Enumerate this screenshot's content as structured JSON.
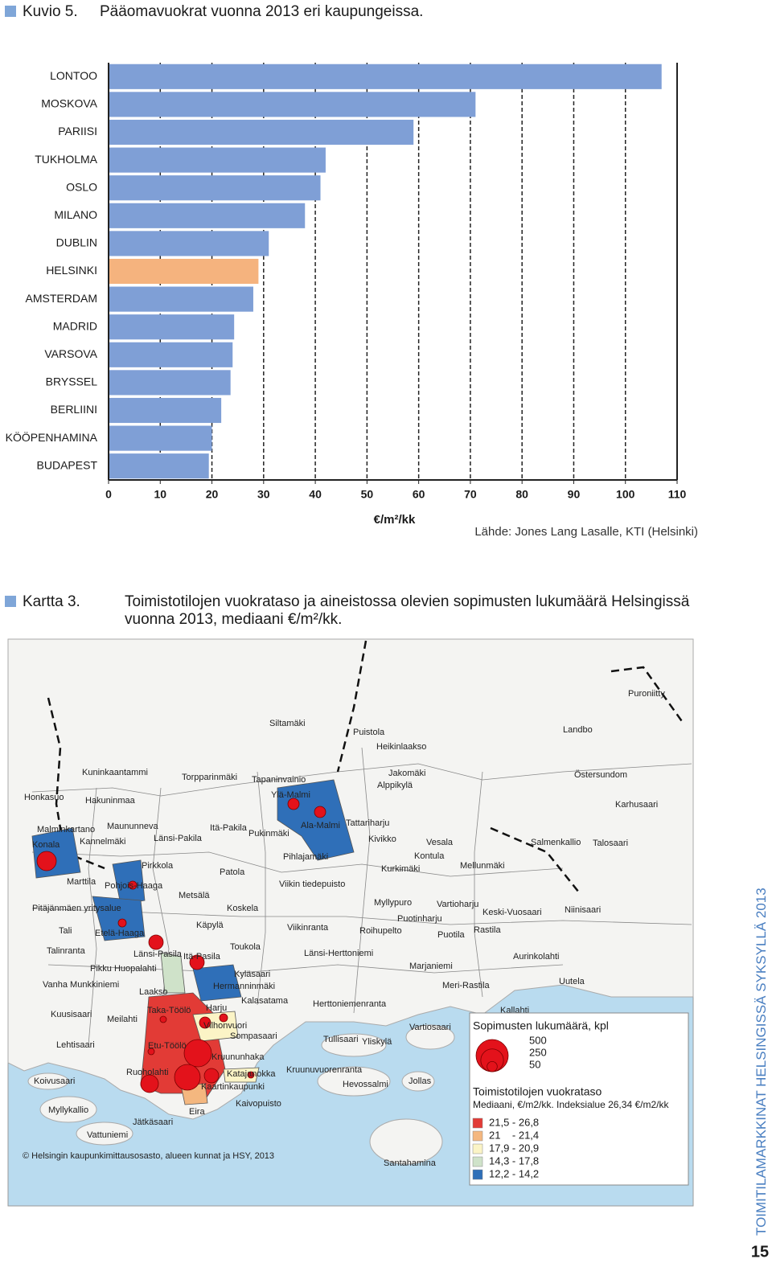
{
  "figure": {
    "label": "Kuvio 5.",
    "title": "Pääomavuokrat vuonna 2013 eri kaupungeissa.",
    "source": "Lähde: Jones Lang Lasalle, KTI (Helsinki)"
  },
  "chart_data": {
    "type": "hbar",
    "categories": [
      "LONTOO",
      "MOSKOVA",
      "PARIISI",
      "TUKHOLMA",
      "OSLO",
      "MILANO",
      "DUBLIN",
      "HELSINKI",
      "AMSTERDAM",
      "MADRID",
      "VARSOVA",
      "BRYSSEL",
      "BERLIINI",
      "KÖÖPENHAMINA",
      "BUDAPEST"
    ],
    "values": [
      107,
      71,
      59,
      42,
      41,
      38,
      31,
      29,
      28,
      24.3,
      24,
      23.6,
      21.8,
      20,
      19.4
    ],
    "colors": [
      "#7f9fd6",
      "#7f9fd6",
      "#7f9fd6",
      "#7f9fd6",
      "#7f9fd6",
      "#7f9fd6",
      "#7f9fd6",
      "#f5b37e",
      "#7f9fd6",
      "#7f9fd6",
      "#7f9fd6",
      "#7f9fd6",
      "#7f9fd6",
      "#7f9fd6",
      "#7f9fd6"
    ],
    "xlim": [
      0,
      110
    ],
    "xticks": [
      0,
      10,
      20,
      30,
      40,
      50,
      60,
      70,
      80,
      90,
      100,
      110
    ],
    "xlabel": "€/m²/kk",
    "grid": true
  },
  "map": {
    "label": "Kartta 3.",
    "title_lines": [
      "Toimistotilojen vuokrataso ja aineistossa olevien sopimusten lukumäärä Helsingissä",
      "vuonna 2013, mediaani €/m²/kk."
    ],
    "labels": [
      "Puroniitty",
      "Siltamäki",
      "Puistola",
      "Landbo",
      "Heikinlaakso",
      "Kuninkaantammi",
      "Torpparinmäki",
      "Tapaninvainio",
      "Jakomäki",
      "Östersundom",
      "Alppikylä",
      "Ylä-Malmi",
      "Honkasuo",
      "Hakuninmaa",
      "Karhusaari",
      "Maununneva",
      "Itä-Pakila",
      "Ala-Malmi",
      "Tattariharju",
      "Malminkartano",
      "Pukinmäki",
      "Länsi-Pakila",
      "Kivikko",
      "Vesala",
      "Salmenkallio",
      "Talosaari",
      "Konala",
      "Kannelmäki",
      "Pihlajamäki",
      "Kontula",
      "Pirkkola",
      "Mellunmäki",
      "Kurkimäki",
      "Patola",
      "Marttila",
      "Pohjois-Haaga",
      "Viikin tiedepuisto",
      "Metsälä",
      "Myllypuro",
      "Vartioharju",
      "Pitäjänmäen yritysalue",
      "Koskela",
      "Keski-Vuosaari",
      "Niinisaari",
      "Puotinharju",
      "Käpylä",
      "Viikinranta",
      "Tali",
      "Etelä-Haaga",
      "Roihupelto",
      "Puotila",
      "Rastila",
      "Toukola",
      "Talinranta",
      "Länsi-Pasila",
      "Itä-Pasila",
      "Länsi-Herttoniemi",
      "Aurinkolahti",
      "Pikku Huopalahti",
      "Marjaniemi",
      "Kyläsaari",
      "Vanha Munkkiniemi",
      "Hermanninmäki",
      "Meri-Rastila",
      "Uutela",
      "Laakso",
      "Kalasatama",
      "Herttoniemenranta",
      "Taka-Töölö",
      "Harju",
      "Kallahti",
      "Kuusisaari",
      "Meilahti",
      "Vilhonvuori",
      "Vartiosaari",
      "Sompasaari",
      "Tullisaari",
      "Yliskylä",
      "Lehtisaari",
      "Etu-Töölö",
      "Kruununhaka",
      "Ruoholahti",
      "Katajanokka",
      "Kruunuvuorenranta",
      "Koivusaari",
      "Jollas",
      "Kaartinkaupunki",
      "Hevossalmi",
      "Kaivopuisto",
      "Myllykallio",
      "Eira",
      "Jätkäsaari",
      "Vattuniemi",
      "Santahamina"
    ],
    "copyright": "© Helsingin kaupunkimittausosasto, alueen kunnat ja HSY, 2013",
    "legend": {
      "count_title": "Sopimusten lukumäärä, kpl",
      "sizes": [
        500,
        250,
        50
      ],
      "rent_title": "Toimistotilojen vuokrataso",
      "rent_subtitle": "Mediaani, €/m2/kk. Indeksialue 26,34 €/m2/kk",
      "items": [
        {
          "label": "21,5 - 26,8",
          "color": "#e23b36"
        },
        {
          "label": "21    - 21,4",
          "color": "#f4b77f"
        },
        {
          "label": "17,9 - 20,9",
          "color": "#fbf4c6"
        },
        {
          "label": "14,3 - 17,8",
          "color": "#cfe2c9"
        },
        {
          "label": "12,2 - 14,2",
          "color": "#2f6fb8"
        }
      ]
    }
  },
  "footer": {
    "running_title": "TOIMITILAMARKKINAT HELSINGISSÄ SYKSYLLÄ 2013",
    "page_number": "15"
  }
}
